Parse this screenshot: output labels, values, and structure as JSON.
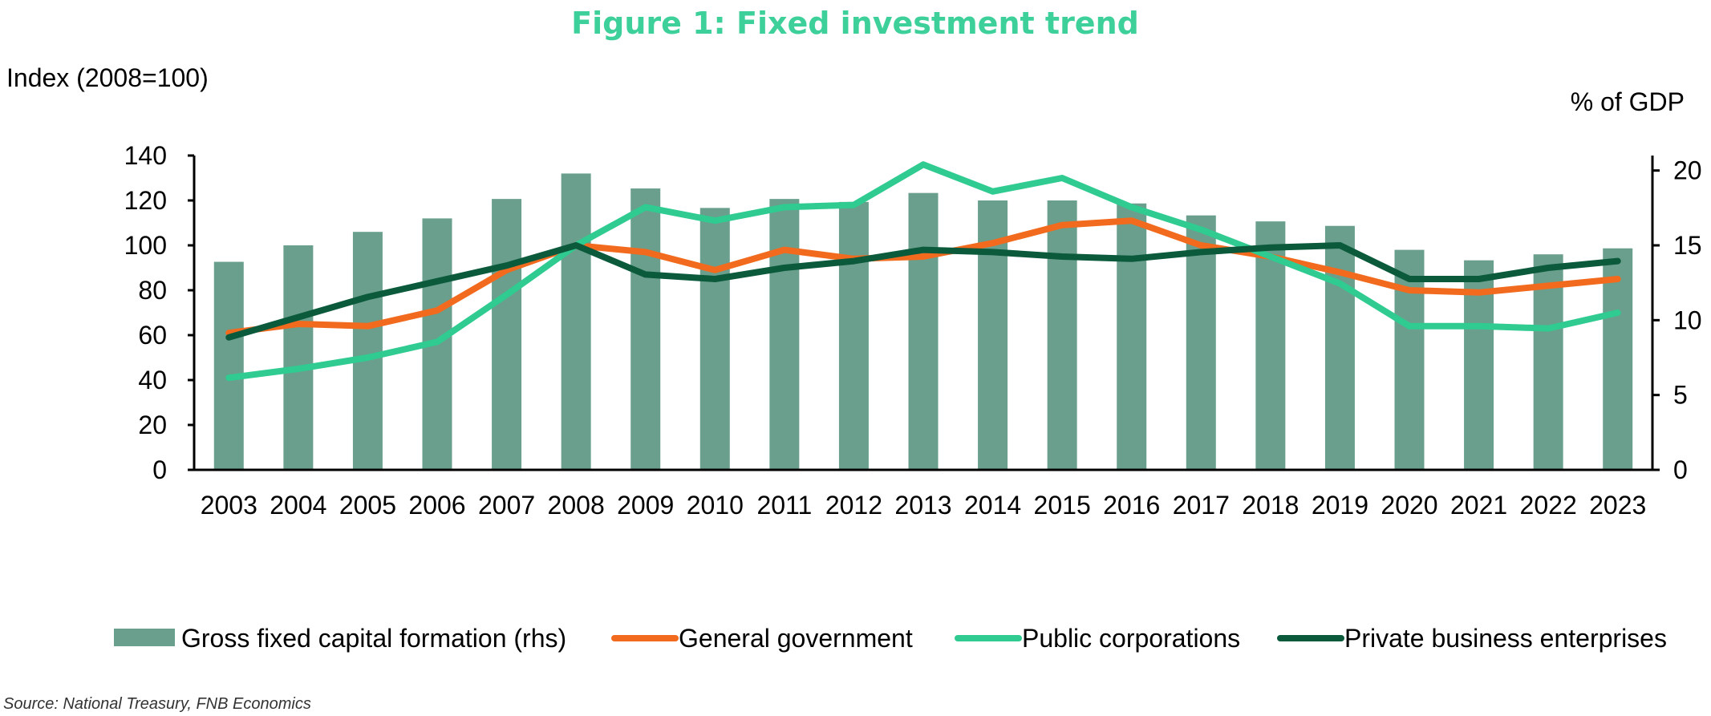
{
  "colors": {
    "gfcf": "#6a9f8d",
    "general_government": "#f26a1d",
    "public_corporations": "#2fcb91",
    "private_business": "#0b5a3c",
    "title": "#3ed09a",
    "axis": "#000000"
  },
  "chart_data": {
    "type": "bar+line",
    "title": "Figure 1: Fixed investment trend",
    "left_axis_label": "Index (2008=100)",
    "right_axis_label": "% of GDP",
    "left_ylim": [
      0,
      140
    ],
    "left_ticks": [
      "0",
      "20",
      "40",
      "60",
      "80",
      "100",
      "120",
      "140"
    ],
    "right_ylim": [
      0,
      21
    ],
    "right_ticks": [
      "0",
      "5",
      "10",
      "15",
      "20"
    ],
    "categories": [
      "2003",
      "2004",
      "2005",
      "2006",
      "2007",
      "2008",
      "2009",
      "2010",
      "2011",
      "2012",
      "2013",
      "2014",
      "2015",
      "2016",
      "2017",
      "2018",
      "2019",
      "2020",
      "2021",
      "2022",
      "2023"
    ],
    "bar_series": {
      "name": "Gross fixed capital formation (rhs)",
      "axis": "right",
      "values": [
        13.9,
        15.0,
        15.9,
        16.8,
        18.1,
        19.8,
        18.8,
        17.5,
        18.1,
        17.9,
        18.5,
        18.0,
        18.0,
        17.8,
        17.0,
        16.6,
        16.3,
        14.7,
        14.0,
        14.4,
        14.8
      ]
    },
    "line_series": [
      {
        "name": "General government",
        "key": "general_government",
        "axis": "left",
        "values": [
          61,
          65,
          64,
          71,
          89,
          100,
          97,
          89,
          98,
          94,
          95,
          101,
          109,
          111,
          100,
          95,
          88,
          80,
          79,
          82,
          85
        ]
      },
      {
        "name": "Public corporations",
        "key": "public_corporations",
        "axis": "left",
        "values": [
          41,
          45,
          50,
          57,
          78,
          100,
          117,
          111,
          117,
          118,
          136,
          124,
          130,
          117,
          107,
          95,
          83,
          64,
          64,
          63,
          70
        ]
      },
      {
        "name": "Private business enterprises",
        "key": "private_business",
        "axis": "left",
        "values": [
          59,
          68,
          77,
          84,
          91,
          100,
          87,
          85,
          90,
          93,
          98,
          97,
          95,
          94,
          97,
          99,
          100,
          85,
          85,
          90,
          93
        ]
      }
    ]
  },
  "legend": {
    "items": [
      {
        "label": "Gross fixed capital formation (rhs)",
        "key": "gfcf",
        "kind": "bar"
      },
      {
        "label": "General government",
        "key": "general_government",
        "kind": "line"
      },
      {
        "label": "Public corporations",
        "key": "public_corporations",
        "kind": "line"
      },
      {
        "label": "Private business enterprises",
        "key": "private_business",
        "kind": "line"
      }
    ]
  },
  "source": "Source: National Treasury, FNB Economics"
}
